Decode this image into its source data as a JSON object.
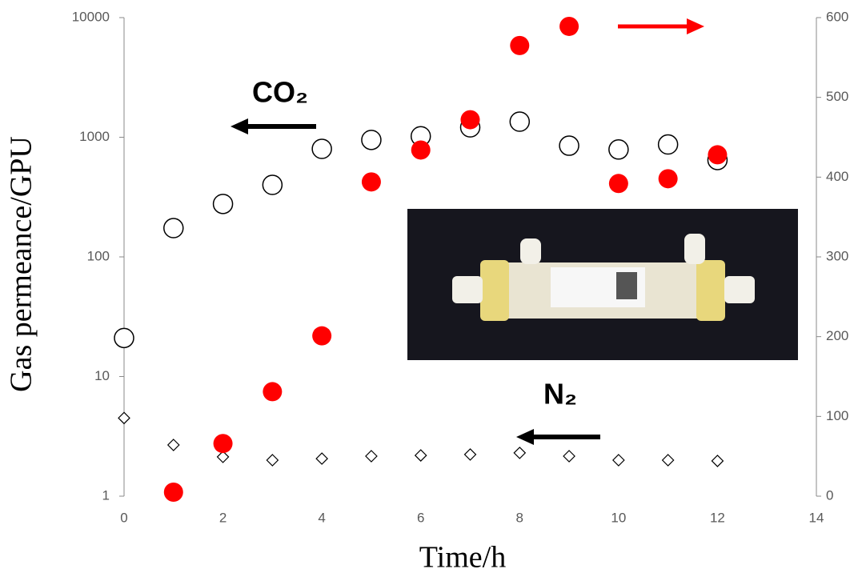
{
  "chart_data": {
    "type": "scatter",
    "x_label": "Time/h",
    "y_label": "Gas permeance/GPU",
    "annotations": [
      "CO₂",
      "N₂"
    ],
    "xlim": [
      0,
      14
    ],
    "xticks": [
      0,
      2,
      4,
      6,
      8,
      10,
      12,
      14
    ],
    "ylim": [
      1,
      10000
    ],
    "yticks": [
      1,
      10,
      100,
      1000,
      10000
    ],
    "yscale": "log",
    "y2lim": [
      0,
      600
    ],
    "y2ticks": [
      0,
      100,
      200,
      300,
      400,
      500,
      600
    ],
    "series": [
      {
        "marker": "circle",
        "filled": false,
        "color": "#000000",
        "axis": "y",
        "x": [
          0,
          1,
          2,
          3,
          4,
          5,
          6,
          7,
          8,
          9,
          10,
          11,
          12
        ],
        "values": [
          21,
          174,
          277,
          400,
          800,
          950,
          1020,
          1210,
          1350,
          850,
          790,
          870,
          645
        ]
      },
      {
        "marker": "diamond",
        "filled": false,
        "color": "#000000",
        "axis": "y",
        "x": [
          0,
          1,
          2,
          3,
          4,
          5,
          6,
          7,
          8,
          9,
          10,
          11,
          12
        ],
        "values": [
          4.5,
          2.68,
          2.13,
          2.0,
          2.06,
          2.16,
          2.19,
          2.23,
          2.3,
          2.16,
          2.0,
          2.0,
          1.97
        ]
      },
      {
        "marker": "circle",
        "filled": true,
        "color": "#ff0000",
        "axis": "y2",
        "x": [
          1,
          2,
          3,
          4,
          5,
          6,
          7,
          8,
          9,
          10,
          11,
          12
        ],
        "values": [
          5,
          66,
          131,
          201,
          394,
          434,
          472,
          565,
          589,
          392,
          398,
          428
        ]
      }
    ]
  }
}
